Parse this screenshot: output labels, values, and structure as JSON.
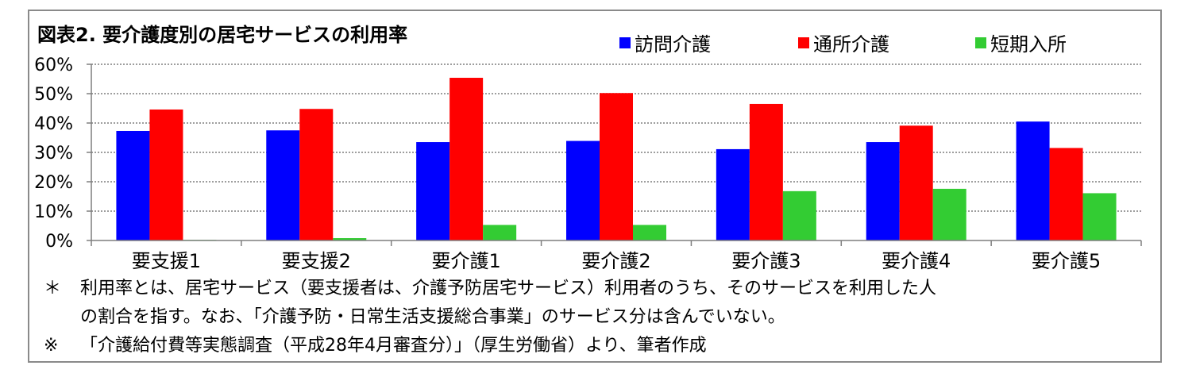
{
  "chart_data": {
    "type": "bar",
    "title": "図表2.  要介護度別の居宅サービスの利用率",
    "categories": [
      "要支援1",
      "要支援2",
      "要介護1",
      "要介護2",
      "要介護3",
      "要介護4",
      "要介護5"
    ],
    "series": [
      {
        "name": "訪問介護",
        "color": "#0000ff",
        "values": [
          37.3,
          37.5,
          33.5,
          33.9,
          31.1,
          33.5,
          40.5
        ]
      },
      {
        "name": "通所介護",
        "color": "#ff0000",
        "values": [
          44.6,
          44.8,
          55.4,
          50.2,
          46.5,
          39.1,
          31.5
        ]
      },
      {
        "name": "短期入所",
        "color": "#33cc33",
        "values": [
          0.2,
          0.8,
          5.3,
          5.3,
          16.8,
          17.6,
          16.1
        ]
      }
    ],
    "ylim": [
      0,
      60
    ],
    "yticks": [
      "0%",
      "10%",
      "20%",
      "30%",
      "40%",
      "50%",
      "60%"
    ],
    "grid": true,
    "legend_position": "top-right"
  },
  "notes": {
    "note1_mark": "＊",
    "note1_line1": "利用率とは、居宅サービス（要支援者は、介護予防居宅サービス）利用者のうち、そのサービスを利用した人",
    "note1_line2": "の割合を指す。なお、「介護予防・日常生活支援総合事業」のサービス分は含んでいない。",
    "note2_mark": "※",
    "note2_text": "「介護給付費等実態調査（平成28年4月審査分）」（厚生労働省）より、筆者作成"
  }
}
